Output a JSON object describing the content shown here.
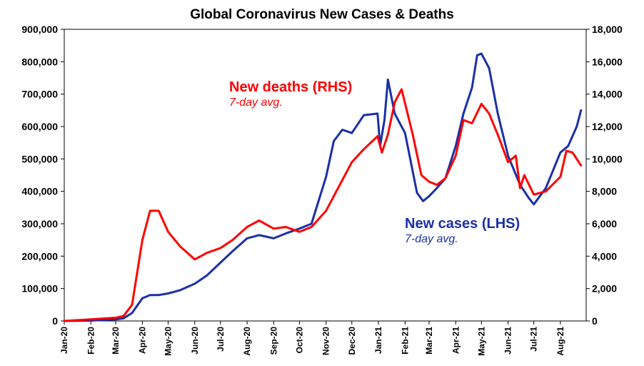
{
  "chart_data": {
    "type": "line",
    "title": "Global Coronavirus New Cases & Deaths",
    "left_axis": {
      "ylim": [
        0,
        900000
      ],
      "ticks": [
        "0",
        "100,000",
        "200,000",
        "300,000",
        "400,000",
        "500,000",
        "600,000",
        "700,000",
        "800,000",
        "900,000"
      ]
    },
    "right_axis": {
      "ylim": [
        0,
        18000
      ],
      "ticks": [
        "0",
        "2,000",
        "4,000",
        "6,000",
        "8,000",
        "10,000",
        "12,000",
        "14,000",
        "16,000",
        "18,000"
      ]
    },
    "x_ticks": [
      "Jan-20",
      "Feb-20",
      "Mar-20",
      "Apr-20",
      "May-20",
      "Jun-20",
      "Jul-20",
      "Aug-20",
      "Sep-20",
      "Oct-20",
      "Nov-20",
      "Dec-20",
      "Jan-21",
      "Feb-21",
      "Mar-21",
      "Apr-21",
      "May-21",
      "Jun-21",
      "Jul-21",
      "Aug-21"
    ],
    "grid": false,
    "series": [
      {
        "name": "New cases (LHS)",
        "note": "7-day avg.",
        "axis": "left",
        "color": "#1a2fa8",
        "x": [
          "2020-01-01",
          "2020-02-01",
          "2020-03-01",
          "2020-03-10",
          "2020-03-20",
          "2020-04-01",
          "2020-04-10",
          "2020-04-20",
          "2020-05-01",
          "2020-05-15",
          "2020-06-01",
          "2020-06-15",
          "2020-07-01",
          "2020-07-15",
          "2020-08-01",
          "2020-08-15",
          "2020-09-01",
          "2020-09-15",
          "2020-10-01",
          "2020-10-15",
          "2020-11-01",
          "2020-11-10",
          "2020-11-20",
          "2020-12-01",
          "2020-12-15",
          "2020-12-31",
          "2021-01-03",
          "2021-01-08",
          "2021-01-12",
          "2021-01-20",
          "2021-02-01",
          "2021-02-15",
          "2021-02-22",
          "2021-03-01",
          "2021-03-10",
          "2021-03-20",
          "2021-04-01",
          "2021-04-10",
          "2021-04-20",
          "2021-04-26",
          "2021-05-01",
          "2021-05-10",
          "2021-05-20",
          "2021-06-01",
          "2021-06-15",
          "2021-06-25",
          "2021-07-01",
          "2021-07-15",
          "2021-08-01",
          "2021-08-10",
          "2021-08-20",
          "2021-08-25"
        ],
        "values": [
          0,
          1000,
          5000,
          8000,
          25000,
          70000,
          80000,
          80000,
          85000,
          95000,
          115000,
          140000,
          180000,
          215000,
          255000,
          265000,
          255000,
          270000,
          285000,
          300000,
          445000,
          555000,
          590000,
          580000,
          635000,
          640000,
          540000,
          620000,
          745000,
          640000,
          580000,
          395000,
          370000,
          385000,
          410000,
          440000,
          540000,
          640000,
          720000,
          820000,
          825000,
          780000,
          640000,
          510000,
          420000,
          380000,
          360000,
          410000,
          520000,
          540000,
          600000,
          650000
        ]
      },
      {
        "name": "New deaths (RHS)",
        "note": "7-day avg.",
        "axis": "right",
        "color": "#ff0000",
        "x": [
          "2020-01-01",
          "2020-02-01",
          "2020-03-01",
          "2020-03-10",
          "2020-03-20",
          "2020-04-01",
          "2020-04-10",
          "2020-04-20",
          "2020-05-01",
          "2020-05-15",
          "2020-06-01",
          "2020-06-15",
          "2020-07-01",
          "2020-07-15",
          "2020-08-01",
          "2020-08-15",
          "2020-09-01",
          "2020-09-15",
          "2020-10-01",
          "2020-10-15",
          "2020-11-01",
          "2020-11-15",
          "2020-12-01",
          "2020-12-15",
          "2020-12-31",
          "2021-01-05",
          "2021-01-12",
          "2021-01-20",
          "2021-01-28",
          "2021-02-10",
          "2021-02-20",
          "2021-03-01",
          "2021-03-10",
          "2021-03-20",
          "2021-04-01",
          "2021-04-10",
          "2021-04-20",
          "2021-05-01",
          "2021-05-10",
          "2021-05-20",
          "2021-06-01",
          "2021-06-10",
          "2021-06-15",
          "2021-06-20",
          "2021-07-01",
          "2021-07-15",
          "2021-08-01",
          "2021-08-08",
          "2021-08-15",
          "2021-08-25"
        ],
        "values": [
          0,
          100,
          200,
          300,
          1000,
          5000,
          6800,
          6800,
          5500,
          4600,
          3800,
          4200,
          4500,
          5000,
          5800,
          6200,
          5700,
          5800,
          5500,
          5800,
          6800,
          8200,
          9800,
          10600,
          11400,
          10400,
          11500,
          13500,
          14300,
          11500,
          9000,
          8600,
          8400,
          8800,
          10200,
          12400,
          12200,
          13400,
          12800,
          11500,
          9800,
          10200,
          8200,
          9000,
          7800,
          8000,
          8900,
          10500,
          10400,
          9600
        ]
      }
    ]
  },
  "labels": {
    "deaths_main": "New deaths (RHS)",
    "deaths_sub": "7-day avg.",
    "cases_main": "New cases (LHS)",
    "cases_sub": "7-day avg."
  }
}
